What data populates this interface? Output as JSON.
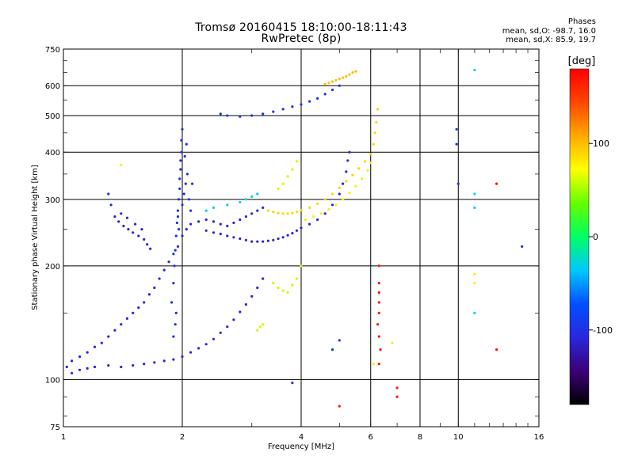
{
  "chart_data": {
    "type": "scatter",
    "title": "Tromsø 20160415 18:10:00-18:11:43",
    "subtitle": "RwPretec (8p)",
    "xlabel": "Frequency [MHz]",
    "ylabel": "Stationary phase Virtual Height [km]",
    "x_scale": "log",
    "y_scale": "log",
    "xlim": [
      1,
      16
    ],
    "ylim": [
      75,
      750
    ],
    "x_ticks": [
      1,
      2,
      4,
      6,
      8,
      10,
      16
    ],
    "y_ticks": [
      75,
      100,
      200,
      300,
      400,
      500,
      600,
      750
    ],
    "grid": true,
    "stats": {
      "heading": "Phases",
      "line_o": "mean, sd,O: -98.7, 16.0",
      "line_x": "mean, sd,X: 85.9, 19.7"
    },
    "colorbar": {
      "label": "[deg]",
      "range": [
        -180,
        180
      ],
      "ticks": [
        100,
        0,
        -100
      ],
      "colors": [
        "#000000",
        "#3c0078",
        "#2828dc",
        "#0050ff",
        "#00c8ff",
        "#00ff64",
        "#64ff00",
        "#ffff00",
        "#ffaa00",
        "#ff4600",
        "#ff0000"
      ]
    },
    "series": [
      {
        "phase": -110,
        "points": [
          [
            1.02,
            108
          ],
          [
            1.05,
            112
          ],
          [
            1.1,
            115
          ],
          [
            1.15,
            118
          ],
          [
            1.2,
            122
          ],
          [
            1.25,
            125
          ],
          [
            1.3,
            130
          ],
          [
            1.35,
            135
          ],
          [
            1.4,
            140
          ],
          [
            1.45,
            145
          ],
          [
            1.5,
            150
          ],
          [
            1.55,
            155
          ],
          [
            1.6,
            160
          ],
          [
            1.65,
            168
          ],
          [
            1.7,
            175
          ],
          [
            1.75,
            185
          ],
          [
            1.8,
            195
          ],
          [
            1.85,
            205
          ],
          [
            1.9,
            215
          ],
          [
            1.95,
            225
          ],
          [
            2.0,
            240
          ],
          [
            2.05,
            250
          ],
          [
            2.1,
            258
          ],
          [
            2.2,
            262
          ],
          [
            2.3,
            265
          ],
          [
            2.4,
            262
          ],
          [
            2.5,
            258
          ],
          [
            2.6,
            255
          ],
          [
            2.7,
            260
          ],
          [
            2.8,
            265
          ],
          [
            2.9,
            270
          ],
          [
            3.0,
            275
          ],
          [
            3.1,
            280
          ],
          [
            3.2,
            285
          ]
        ]
      },
      {
        "phase": -110,
        "points": [
          [
            1.05,
            104
          ],
          [
            1.1,
            106
          ],
          [
            1.15,
            107
          ],
          [
            1.2,
            108
          ],
          [
            1.3,
            109
          ],
          [
            1.4,
            108
          ],
          [
            1.5,
            109
          ],
          [
            1.6,
            110
          ],
          [
            1.7,
            111
          ],
          [
            1.8,
            112
          ],
          [
            1.9,
            113
          ],
          [
            2.0,
            115
          ],
          [
            2.1,
            118
          ],
          [
            2.2,
            121
          ],
          [
            2.3,
            124
          ],
          [
            2.4,
            128
          ],
          [
            2.5,
            133
          ],
          [
            2.6,
            138
          ],
          [
            2.7,
            144
          ],
          [
            2.8,
            151
          ],
          [
            2.9,
            158
          ],
          [
            3.0,
            166
          ],
          [
            3.1,
            175
          ],
          [
            3.2,
            185
          ]
        ]
      },
      {
        "phase": -100,
        "points": [
          [
            1.88,
            160
          ],
          [
            1.9,
            180
          ],
          [
            1.91,
            200
          ],
          [
            1.92,
            220
          ],
          [
            1.93,
            240
          ],
          [
            1.94,
            260
          ],
          [
            1.95,
            280
          ],
          [
            1.96,
            300
          ],
          [
            1.97,
            320
          ],
          [
            1.97,
            340
          ],
          [
            1.98,
            360
          ],
          [
            1.98,
            380
          ],
          [
            1.99,
            400
          ],
          [
            1.99,
            430
          ],
          [
            2.0,
            460
          ],
          [
            1.96,
            250
          ],
          [
            1.95,
            270
          ],
          [
            2.0,
            290
          ],
          [
            2.02,
            310
          ],
          [
            2.04,
            330
          ],
          [
            2.06,
            350
          ],
          [
            1.93,
            150
          ],
          [
            1.92,
            140
          ],
          [
            1.9,
            130
          ],
          [
            2.05,
            420
          ],
          [
            2.03,
            390
          ],
          [
            2.08,
            300
          ],
          [
            2.1,
            280
          ],
          [
            2.12,
            330
          ]
        ]
      },
      {
        "phase": -110,
        "points": [
          [
            2.3,
            248
          ],
          [
            2.4,
            245
          ],
          [
            2.5,
            243
          ],
          [
            2.6,
            240
          ],
          [
            2.7,
            238
          ],
          [
            2.8,
            236
          ],
          [
            2.9,
            234
          ],
          [
            3.0,
            232
          ],
          [
            3.1,
            232
          ],
          [
            3.2,
            232
          ],
          [
            3.3,
            233
          ],
          [
            3.4,
            234
          ],
          [
            3.5,
            236
          ],
          [
            3.6,
            238
          ],
          [
            3.7,
            241
          ],
          [
            3.8,
            244
          ],
          [
            3.9,
            248
          ],
          [
            4.0,
            252
          ],
          [
            4.2,
            258
          ],
          [
            4.4,
            265
          ],
          [
            4.6,
            275
          ],
          [
            4.8,
            290
          ],
          [
            5.0,
            310
          ],
          [
            5.1,
            330
          ],
          [
            5.2,
            355
          ],
          [
            5.25,
            380
          ],
          [
            5.3,
            400
          ]
        ]
      },
      {
        "phase": -100,
        "points": [
          [
            2.5,
            505
          ],
          [
            2.6,
            500
          ],
          [
            2.8,
            497
          ],
          [
            3.0,
            500
          ],
          [
            3.2,
            505
          ],
          [
            3.4,
            512
          ],
          [
            3.6,
            520
          ],
          [
            3.8,
            528
          ],
          [
            4.0,
            535
          ],
          [
            4.2,
            545
          ],
          [
            4.4,
            555
          ],
          [
            4.6,
            570
          ],
          [
            4.8,
            585
          ],
          [
            5.0,
            600
          ]
        ]
      },
      {
        "phase": -110,
        "points": [
          [
            1.3,
            310
          ],
          [
            1.32,
            290
          ],
          [
            1.35,
            270
          ],
          [
            1.38,
            262
          ],
          [
            1.42,
            255
          ],
          [
            1.46,
            250
          ],
          [
            1.5,
            245
          ],
          [
            1.55,
            240
          ],
          [
            1.6,
            235
          ],
          [
            1.63,
            228
          ],
          [
            1.66,
            222
          ],
          [
            1.4,
            275
          ],
          [
            1.45,
            268
          ],
          [
            1.52,
            258
          ],
          [
            1.58,
            250
          ]
        ]
      },
      {
        "phase": 90,
        "points": [
          [
            3.3,
            280
          ],
          [
            3.4,
            278
          ],
          [
            3.5,
            276
          ],
          [
            3.6,
            275
          ],
          [
            3.7,
            275
          ],
          [
            3.8,
            276
          ],
          [
            3.9,
            278
          ],
          [
            4.0,
            281
          ],
          [
            4.2,
            285
          ],
          [
            4.4,
            292
          ],
          [
            4.6,
            300
          ],
          [
            4.8,
            310
          ],
          [
            5.0,
            322
          ],
          [
            5.2,
            335
          ],
          [
            5.4,
            348
          ],
          [
            5.6,
            362
          ],
          [
            5.8,
            378
          ],
          [
            6.0,
            395
          ],
          [
            6.1,
            420
          ],
          [
            6.15,
            450
          ],
          [
            6.2,
            480
          ],
          [
            6.25,
            520
          ]
        ]
      },
      {
        "phase": 80,
        "points": [
          [
            4.1,
            265
          ],
          [
            4.3,
            270
          ],
          [
            4.5,
            275
          ],
          [
            4.7,
            282
          ],
          [
            4.9,
            290
          ],
          [
            5.1,
            300
          ],
          [
            5.3,
            312
          ],
          [
            5.5,
            325
          ],
          [
            5.7,
            340
          ],
          [
            5.9,
            358
          ],
          [
            6.0,
            375
          ]
        ]
      },
      {
        "phase": 60,
        "points": [
          [
            3.5,
            320
          ],
          [
            3.6,
            330
          ],
          [
            3.7,
            345
          ],
          [
            3.8,
            360
          ],
          [
            3.9,
            378
          ],
          [
            3.4,
            180
          ],
          [
            3.5,
            175
          ],
          [
            3.6,
            172
          ],
          [
            3.7,
            170
          ],
          [
            3.8,
            178
          ],
          [
            3.9,
            185
          ],
          [
            4.0,
            200
          ],
          [
            3.1,
            135
          ],
          [
            3.15,
            138
          ],
          [
            3.2,
            140
          ]
        ]
      },
      {
        "phase": 100,
        "points": [
          [
            4.6,
            605
          ],
          [
            4.7,
            610
          ],
          [
            4.8,
            615
          ],
          [
            4.9,
            620
          ],
          [
            5.0,
            625
          ],
          [
            5.1,
            630
          ],
          [
            5.2,
            635
          ],
          [
            5.3,
            642
          ],
          [
            5.4,
            650
          ],
          [
            5.5,
            655
          ]
        ]
      },
      {
        "phase": -30,
        "points": [
          [
            2.3,
            280
          ],
          [
            2.4,
            285
          ],
          [
            2.6,
            290
          ],
          [
            2.8,
            295
          ],
          [
            2.9,
            300
          ],
          [
            3.0,
            305
          ],
          [
            3.1,
            310
          ]
        ]
      },
      {
        "phase": 170,
        "points": [
          [
            6.3,
            200
          ],
          [
            6.3,
            180
          ],
          [
            6.3,
            170
          ],
          [
            6.3,
            160
          ],
          [
            6.3,
            150
          ],
          [
            6.25,
            140
          ],
          [
            6.3,
            130
          ],
          [
            6.35,
            120
          ],
          [
            6.3,
            110
          ],
          [
            7.0,
            95
          ],
          [
            7.0,
            90
          ],
          [
            12.5,
            330
          ],
          [
            12.5,
            120
          ],
          [
            5.0,
            85
          ]
        ]
      },
      {
        "phase": -100,
        "points": [
          [
            9.9,
            460
          ],
          [
            9.9,
            420
          ],
          [
            10.0,
            330
          ],
          [
            14.5,
            225
          ],
          [
            3.8,
            98
          ],
          [
            4.8,
            120
          ],
          [
            5.0,
            127
          ]
        ]
      },
      {
        "phase": -30,
        "points": [
          [
            11.0,
            660
          ],
          [
            11.0,
            150
          ],
          [
            11.0,
            285
          ],
          [
            11.0,
            310
          ]
        ]
      },
      {
        "phase": 80,
        "points": [
          [
            1.4,
            370
          ],
          [
            11.0,
            190
          ],
          [
            11.0,
            180
          ],
          [
            6.8,
            125
          ],
          [
            6.1,
            110
          ]
        ]
      }
    ]
  }
}
